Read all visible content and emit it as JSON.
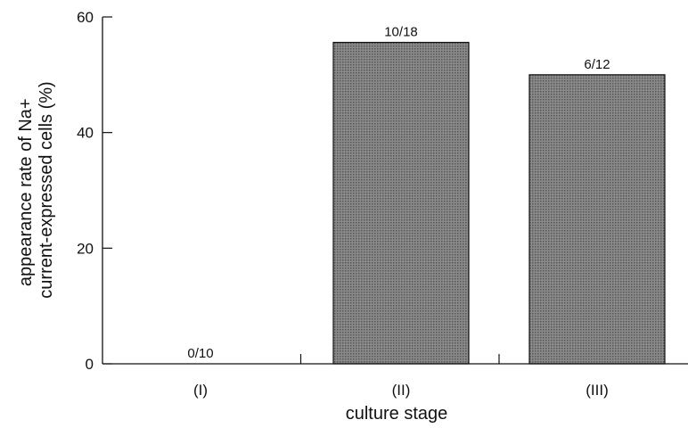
{
  "chart_data": {
    "type": "bar",
    "categories": [
      "(I)",
      "(II)",
      "(III)"
    ],
    "values": [
      0,
      55.6,
      50
    ],
    "data_labels": [
      "0/10",
      "10/18",
      "6/12"
    ],
    "xlabel": "culture stage",
    "ylabel_lines": [
      "appearance rate of Na+",
      "current-expressed cells (%)"
    ],
    "ylim": [
      0,
      60
    ],
    "yticks": [
      0,
      20,
      40,
      60
    ],
    "grid": false,
    "legend": "none",
    "colors": {
      "bar_fill": "#8a8a8a",
      "bar_dots": "#555555",
      "axis": "#111111"
    }
  }
}
